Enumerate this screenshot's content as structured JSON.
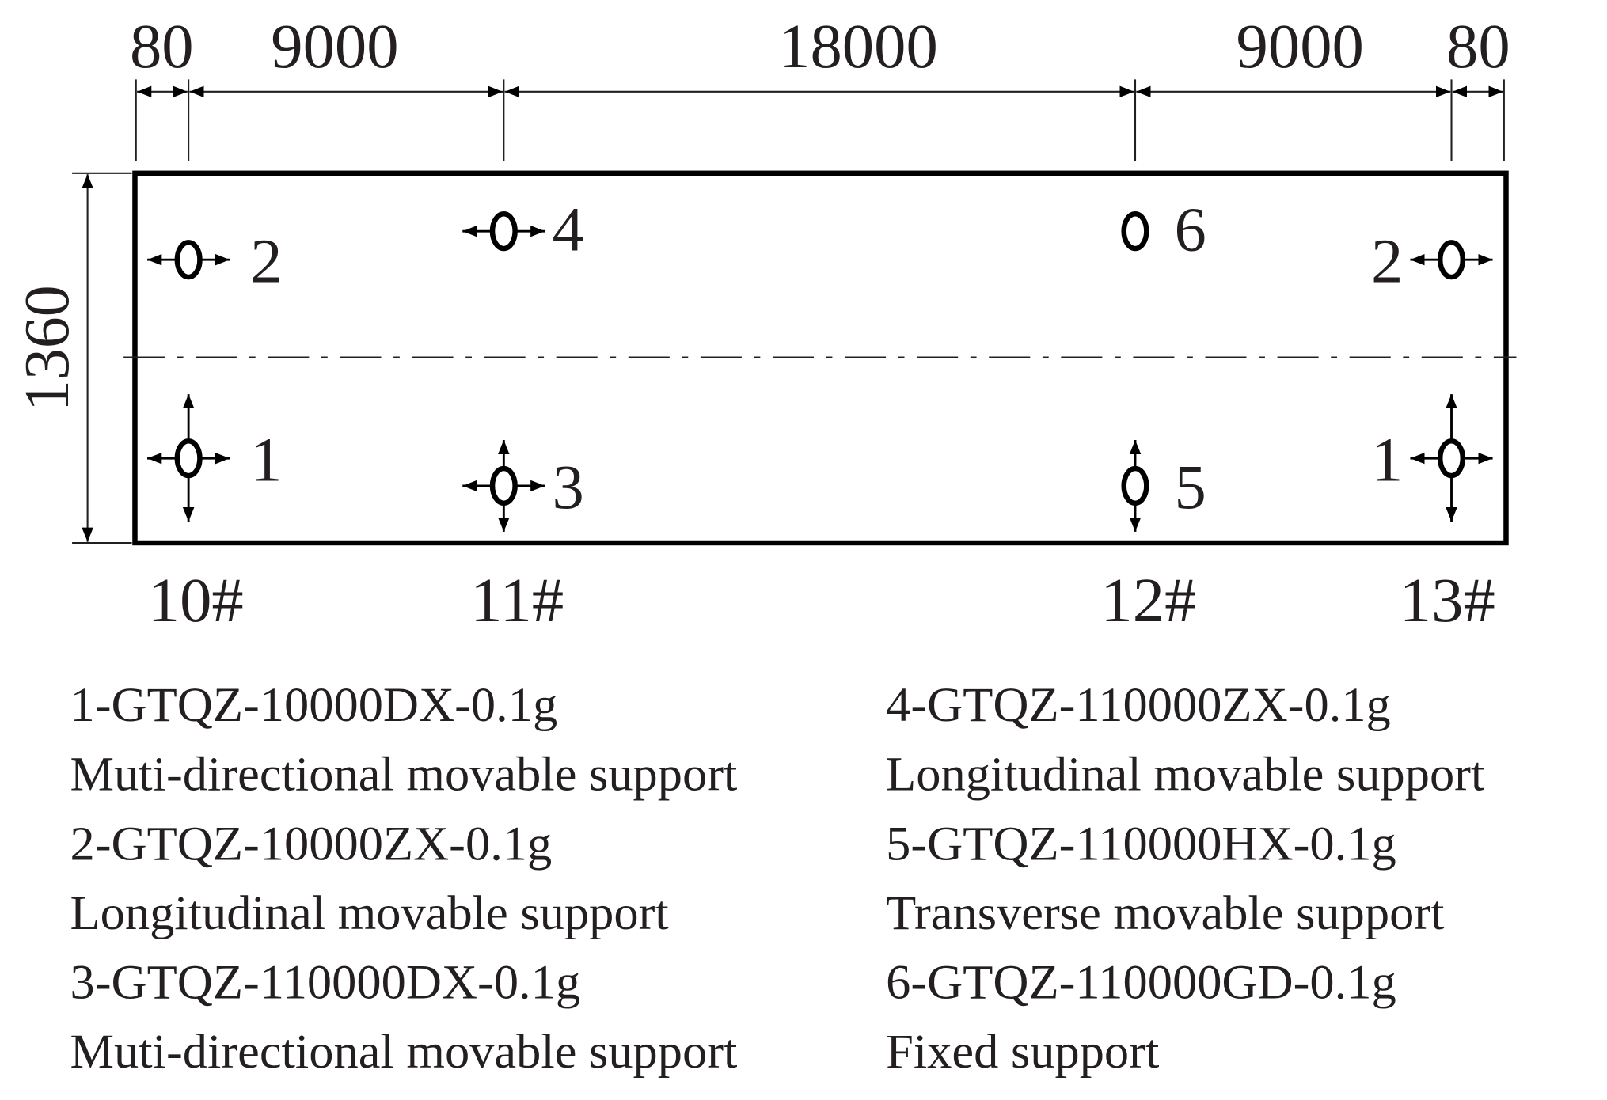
{
  "dimensions": {
    "top": [
      80,
      9000,
      18000,
      9000,
      80
    ],
    "side": 1360
  },
  "piers": [
    "10#",
    "11#",
    "12#",
    "13#"
  ],
  "supports": [
    {
      "label": "2"
    },
    {
      "label": "1"
    },
    {
      "label": "4"
    },
    {
      "label": "3"
    },
    {
      "label": "6"
    },
    {
      "label": "5"
    },
    {
      "label": "2"
    },
    {
      "label": "1"
    }
  ],
  "legend": [
    {
      "code": "1-GTQZ-10000DX-0.1g",
      "description": "Muti-directional movable support"
    },
    {
      "code": "2-GTQZ-10000ZX-0.1g",
      "description": "Longitudinal movable support"
    },
    {
      "code": "3-GTQZ-110000DX-0.1g",
      "description": "Muti-directional movable support"
    },
    {
      "code": "4-GTQZ-110000ZX-0.1g",
      "description": "Longitudinal movable support"
    },
    {
      "code": "5-GTQZ-110000HX-0.1g",
      "description": "Transverse movable support"
    },
    {
      "code": "6-GTQZ-110000GD-0.1g",
      "description": "Fixed support"
    }
  ]
}
